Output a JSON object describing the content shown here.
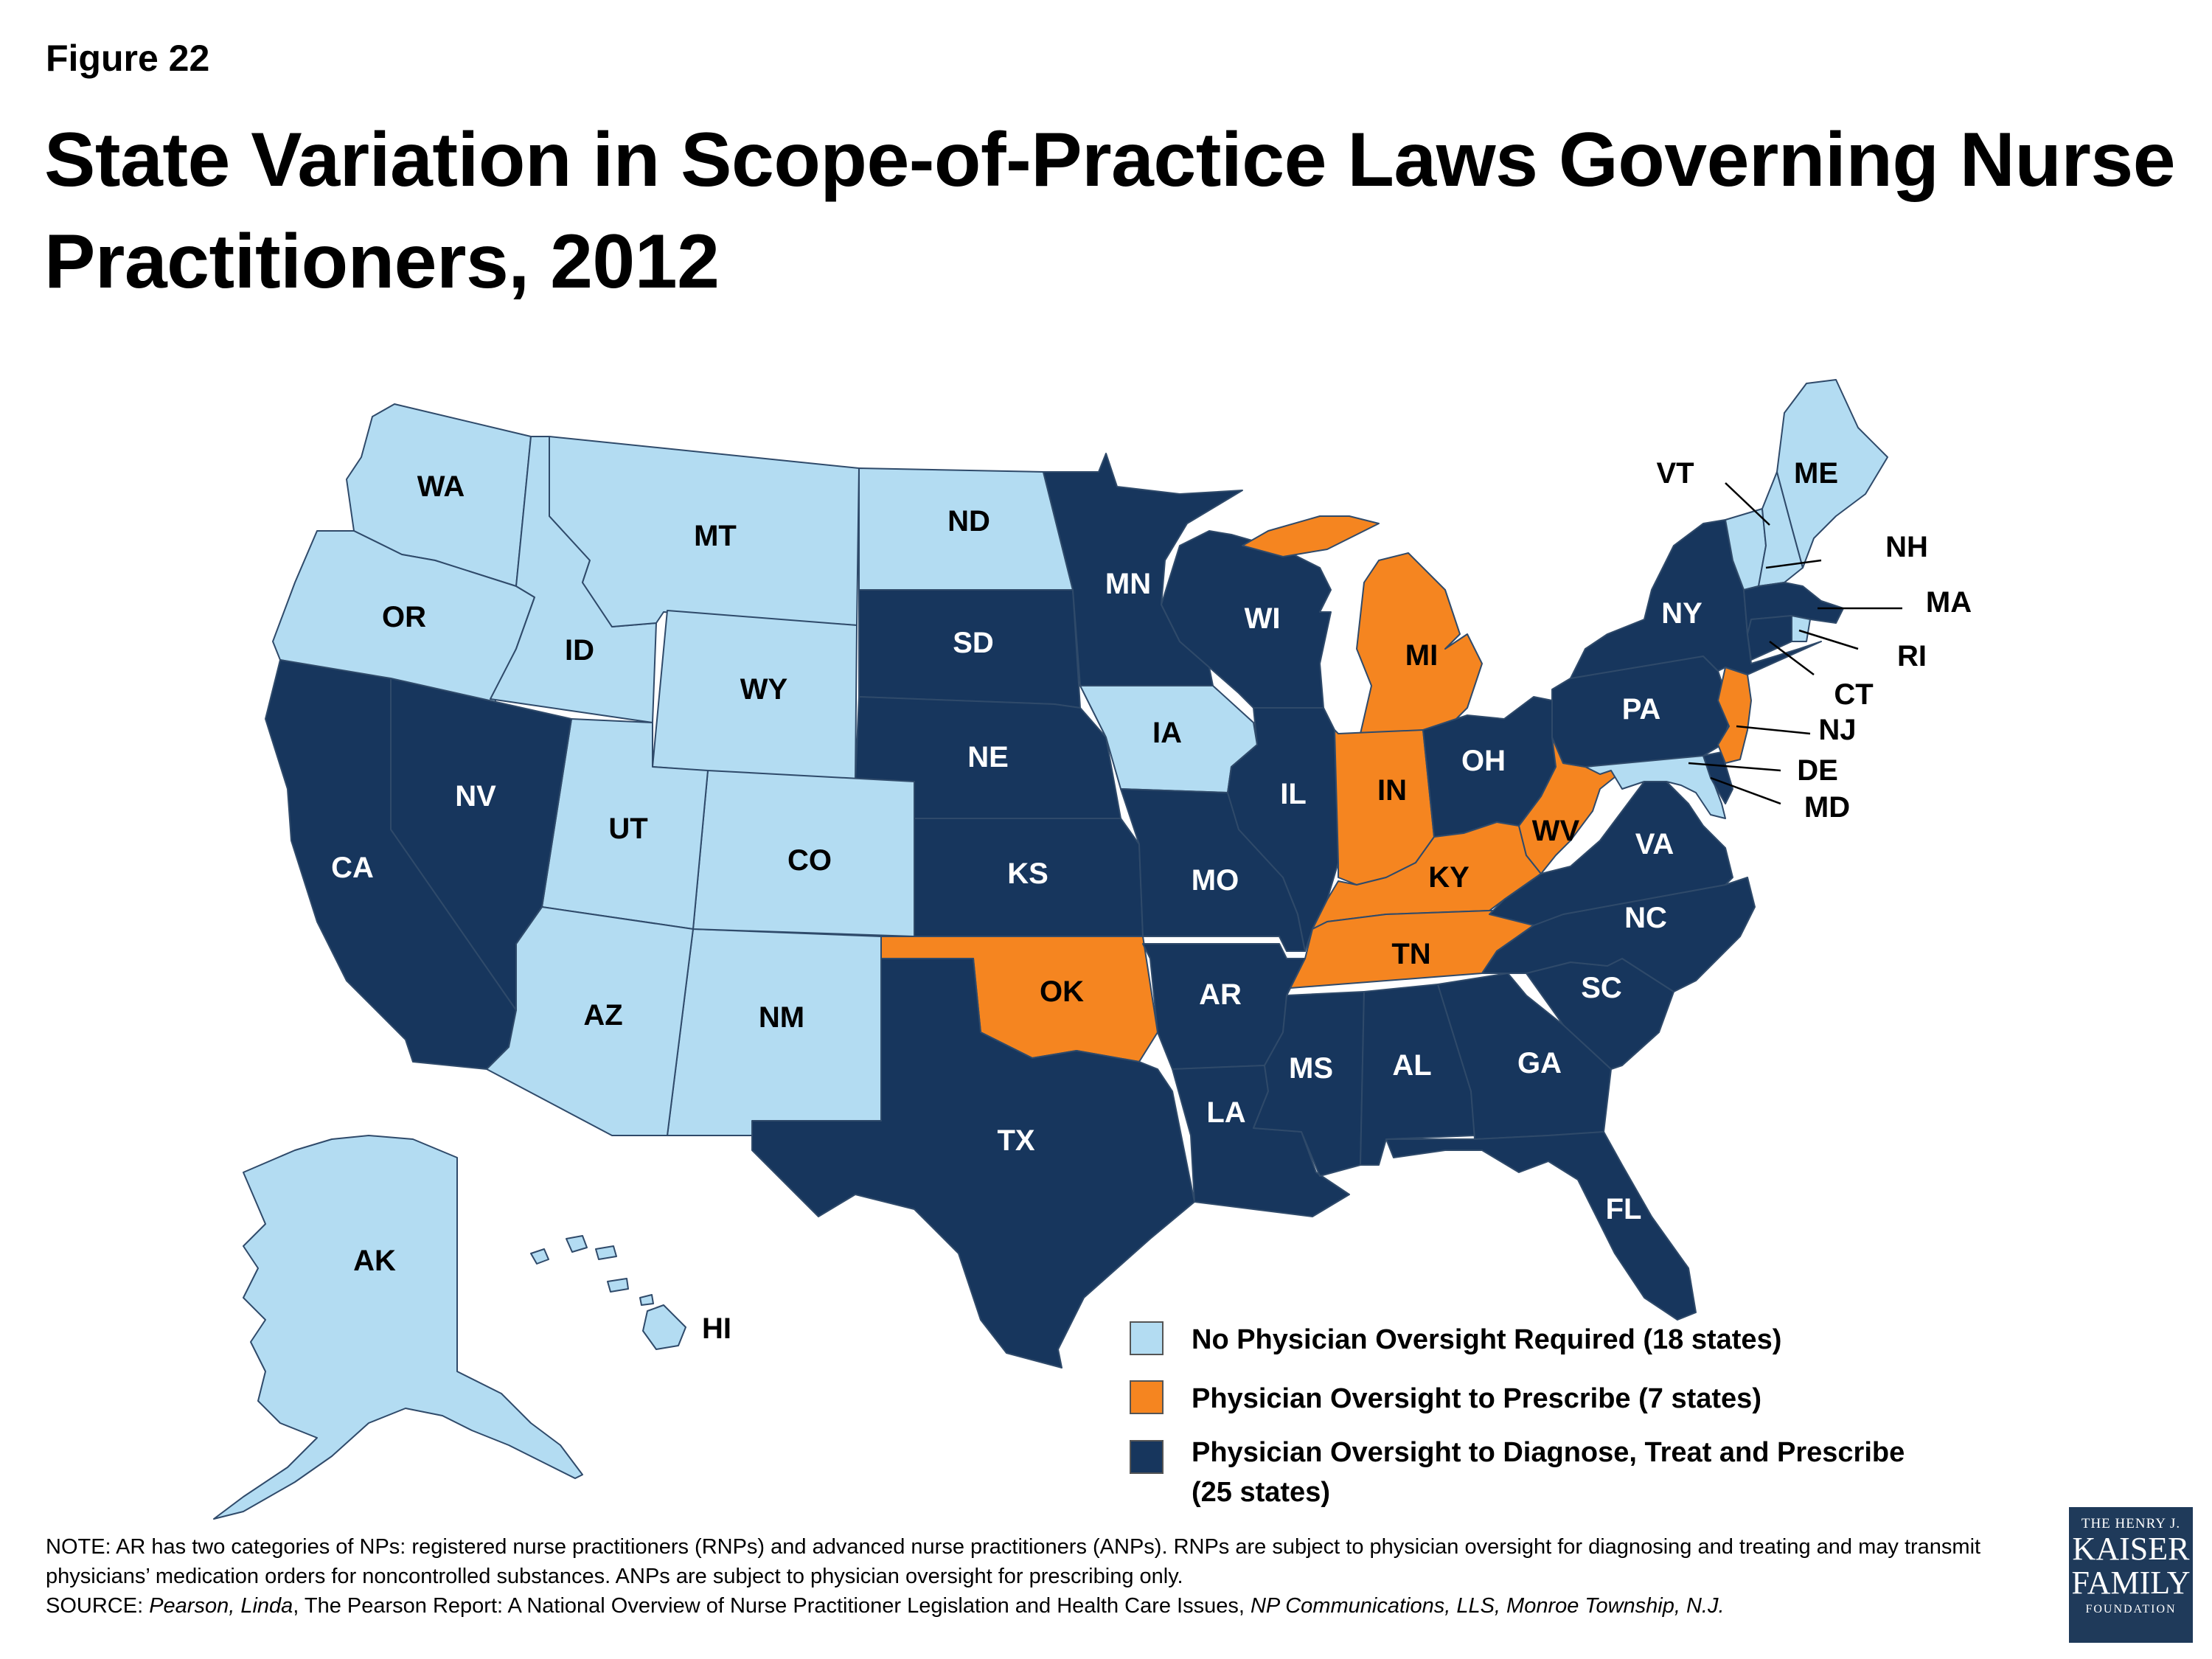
{
  "figure_label": "Figure 22",
  "title": "State Variation in Scope-of-Practice Laws Governing Nurse Practitioners, 2012",
  "colors": {
    "none": "#b3dcf2",
    "prescribe": "#f58520",
    "full": "#17365d"
  },
  "legend": [
    {
      "category": "none",
      "label": "No Physician Oversight Required (18 states)"
    },
    {
      "category": "prescribe",
      "label": "Physician Oversight to Prescribe (7 states)"
    },
    {
      "category": "full",
      "label": "Physician Oversight to Diagnose, Treat and Prescribe (25 states)"
    }
  ],
  "states": {
    "WA": "none",
    "OR": "none",
    "ID": "none",
    "MT": "none",
    "WY": "none",
    "ND": "none",
    "UT": "none",
    "CO": "none",
    "AZ": "none",
    "NM": "none",
    "IA": "none",
    "AK": "none",
    "HI": "none",
    "ME": "none",
    "NH": "none",
    "VT": "none",
    "RI": "none",
    "MD": "none",
    "MI": "prescribe",
    "IN": "prescribe",
    "KY": "prescribe",
    "TN": "prescribe",
    "WV": "prescribe",
    "OK": "prescribe",
    "NJ": "prescribe",
    "CA": "full",
    "NV": "full",
    "SD": "full",
    "NE": "full",
    "KS": "full",
    "TX": "full",
    "MN": "full",
    "MO": "full",
    "AR": "full",
    "LA": "full",
    "WI": "full",
    "IL": "full",
    "MS": "full",
    "AL": "full",
    "OH": "full",
    "GA": "full",
    "FL": "full",
    "SC": "full",
    "NC": "full",
    "VA": "full",
    "PA": "full",
    "NY": "full",
    "MA": "full",
    "CT": "full",
    "DE": "full"
  },
  "notes": {
    "note": "NOTE: AR has two categories of NPs: registered nurse practitioners (RNPs) and advanced nurse practitioners (ANPs). RNPs are subject to physician oversight for diagnosing and treating and may transmit physicians’ medication orders for noncontrolled substances. ANPs are subject to physician oversight for prescribing only.",
    "source_prefix": "SOURCE: ",
    "source_author": "Pearson, Linda",
    "source_title": ", The Pearson Report: A National Overview of Nurse Practitioner Legislation and Health Care Issues, ",
    "source_publisher": "NP Communications, LLS, Monroe Township, N.J."
  },
  "logo": {
    "line1": "THE HENRY J.",
    "line2": "KAISER",
    "line3": "FAMILY",
    "line4": "FOUNDATION"
  }
}
